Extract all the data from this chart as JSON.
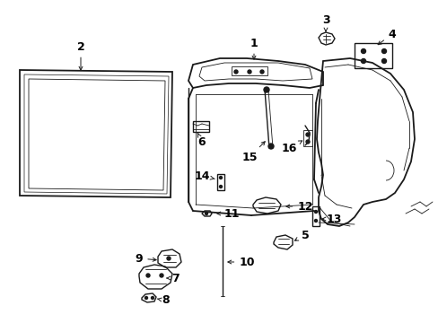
{
  "bg_color": "#ffffff",
  "line_color": "#1a1a1a",
  "text_color": "#000000",
  "lw_main": 1.0,
  "lw_thin": 0.6,
  "lw_body": 1.3,
  "fontsize": 9
}
